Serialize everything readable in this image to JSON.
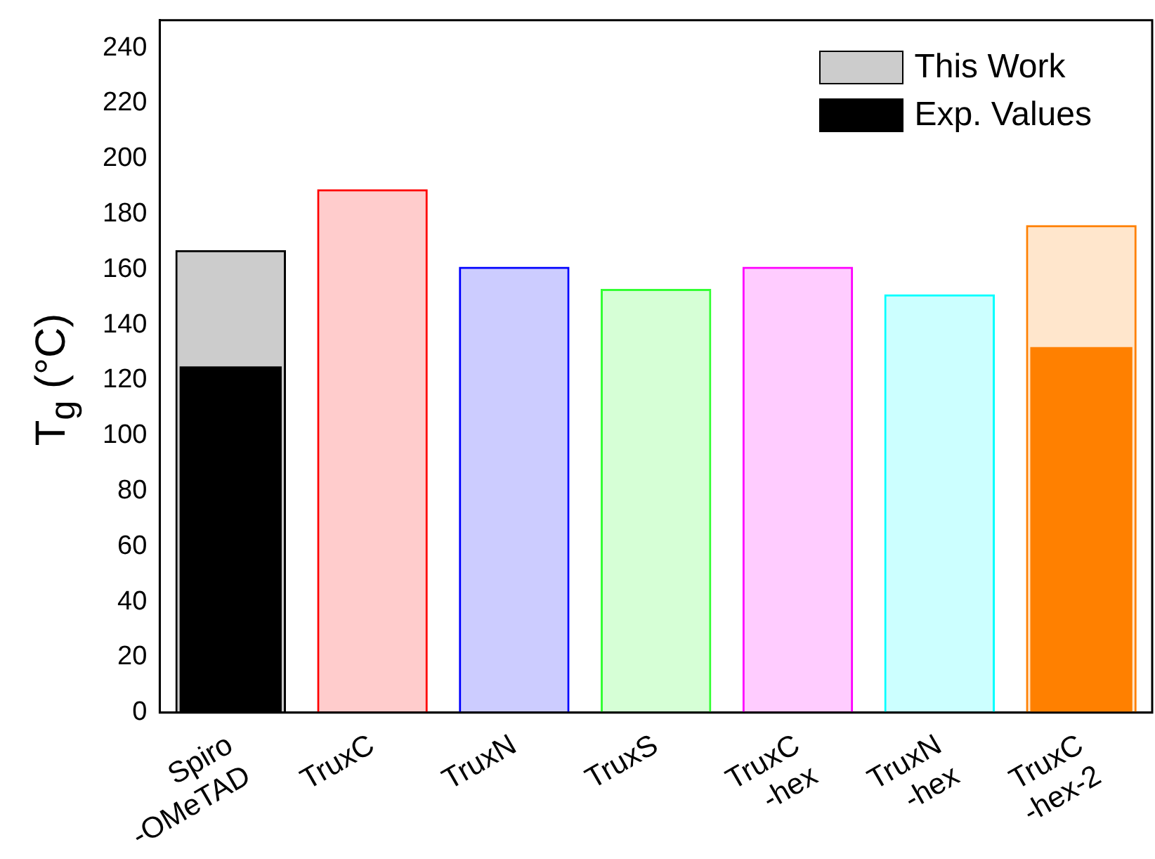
{
  "chart_data": {
    "type": "bar",
    "ylabel": "T$_{g}$ (°C)",
    "categories": [
      "Spiro\n-OMeTAD",
      "TruxC",
      "TruxN",
      "TruxS",
      "TruxC\n-hex",
      "TruxN\n-hex",
      "TruxC\n-hex-2"
    ],
    "series": [
      {
        "name": "This Work",
        "colors": [
          "#000000",
          "#ff0000",
          "#0000ff",
          "#33ff33",
          "#ff00ff",
          "#00ffff",
          "#ff8000"
        ],
        "values": [
          167,
          189,
          161,
          153,
          161,
          151,
          176
        ]
      },
      {
        "name": "Exp. Values",
        "colors": [
          "#000000",
          "#000000",
          "#000000",
          "#000000",
          "#000000",
          "#000000",
          "#ff8000"
        ],
        "values": [
          125,
          null,
          null,
          null,
          null,
          null,
          132
        ]
      }
    ],
    "ylim": [
      0,
      250
    ],
    "yticks": [
      0,
      20,
      40,
      60,
      80,
      100,
      120,
      140,
      160,
      180,
      200,
      220,
      240
    ],
    "grid": false,
    "legend": "top right"
  }
}
